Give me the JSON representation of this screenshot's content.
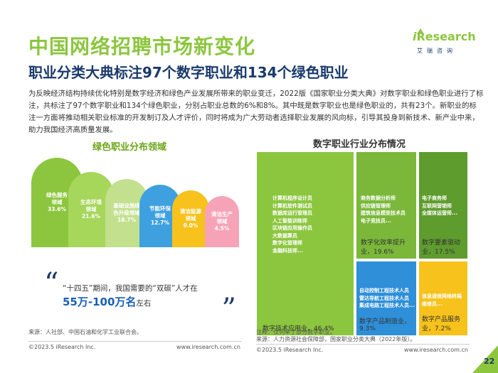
{
  "header": {
    "title": "中国网络招聘市场新变化",
    "subtitle": "职业分类大典标注97个数字职业和134个绿色职业"
  },
  "logo": {
    "brand_prefix": "i",
    "brand_rest": "Research",
    "tagline": "艾瑞咨询"
  },
  "intro": "为反映经济结构持续优化特别是数字经济和绿色产业发展所带来的职业变迁，2022版《国家职业分类大典》对数字职业和绿色职业进行了标注，共标注了97个数字职业和134个绿色职业，分别占职业总数的6%和8%。其中既是数字职业也是绿色职业的，共有23个。新职业的标注一方面将推动相关职业标准的开发制订及人才评价，同时将成为广大劳动者选择职业发展的风向标，引导其投身到新技术、新产业中来，助力我国经济高质量发展。",
  "left_panel": {
    "title": "绿色职业分布领域",
    "arches": [
      {
        "l1": "绿色服务",
        "l2": "领域",
        "l3": "33.6%",
        "color": "#8cc63f"
      },
      {
        "l1": "生态环境",
        "l2": "领域",
        "l3": "21.6%",
        "color": "#a6d65a"
      },
      {
        "l1": "基础设施绿",
        "l2": "色升级领域",
        "l3": "18.7%",
        "color": "#c2e08e"
      },
      {
        "l1": "节能环保",
        "l2": "领域",
        "l3": "12.7%",
        "color": "#3fa0e0"
      },
      {
        "l1": "清洁能源",
        "l2": "领域",
        "l3": "9.0%",
        "color": "#f6c21b"
      },
      {
        "l1": "清洁生产",
        "l2": "领域",
        "l3": "4.5%",
        "color": "#f6a3b8"
      }
    ],
    "callout": {
      "line1": "“十四五”期间，我国需要的“双碳”人才在",
      "big": "55万-100万名",
      "tail": "左右"
    },
    "source": "来源：人社部、中国石油和化学工业联合会。"
  },
  "right_panel": {
    "title": "数字职业行业分布情况",
    "cells": [
      {
        "label": "数字技术应用业，46.4%",
        "color": "#8cc63f",
        "items": [
          "计算机程序设计员",
          "计算机软件测试员",
          "数据库运行管理员",
          "人工智能训练师",
          "区块链应用操作员",
          "大数据算员",
          "数字化管理师",
          "金融科技师..."
        ]
      },
      {
        "label": "数字化效率提升业，19.6%",
        "color": "#7bb83a",
        "items": [
          "商务数据分析师",
          "供应链管理师",
          "建筑信息模型技术员",
          "电子竞技员..."
        ]
      },
      {
        "label": "数字要素驱动业，17.5%",
        "color": "#5f9c2e",
        "items": [
          "电子商务师",
          "互联网营销师",
          "全媒体运营师..."
        ]
      },
      {
        "label": "数字产品制造业，9.3%",
        "color": "#2f8fd8",
        "items": [
          "自动控制工程技术人员",
          "雷达导航工程技术人员",
          "集成电路工程技术人员..."
        ]
      },
      {
        "label": "数字产品服务业，7.2%",
        "color": "#f6c21b",
        "items": [
          "信息通信网络终端",
          "维修员..."
        ]
      }
    ],
    "note": "注释：仅列举了部分数字职业。",
    "source": "来源：人力资源社会保障部，国家职业分类大典（2022年版）。"
  },
  "footer": {
    "copyright_left": "©2023.5 iResearch Inc.",
    "url_left": "www.iresearch.com.cn",
    "copyright_right": "©2023.5 iResearch Inc.",
    "url_right": "www.iresearch.com.cn",
    "page": "22"
  }
}
